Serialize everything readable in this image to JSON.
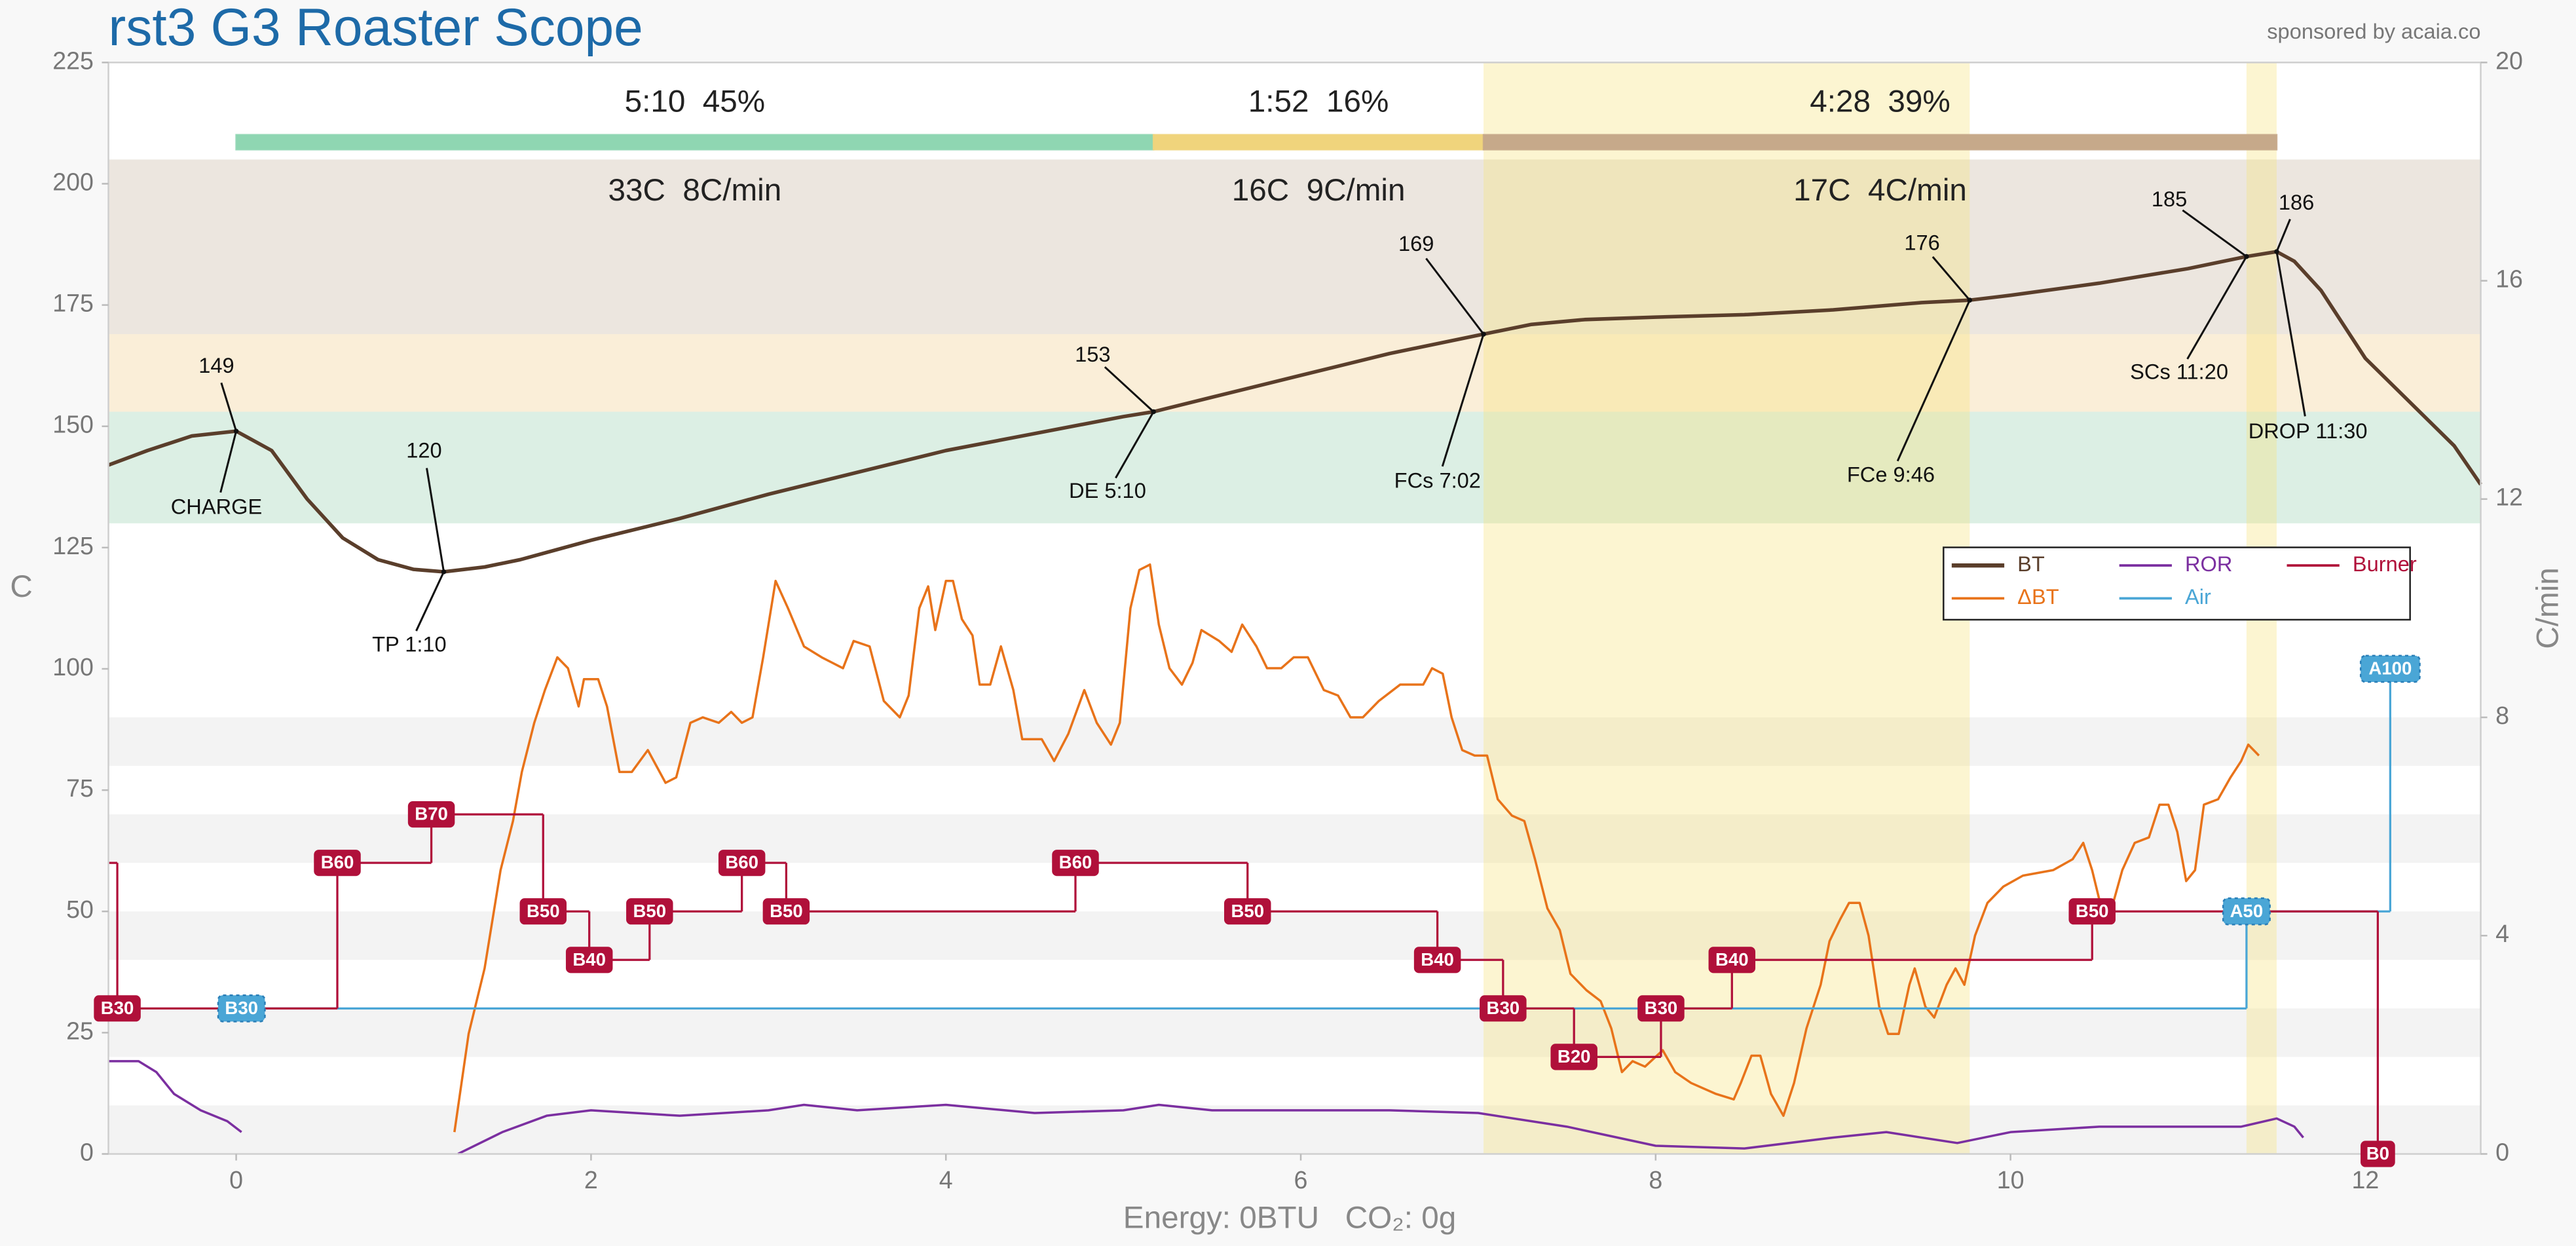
{
  "chart_data": {
    "type": "line",
    "title": "rst3 G3 Roaster Scope",
    "subtitle": "sponsored by acaia.co",
    "x_label": "Energy: 0BTU   CO₂: 0g",
    "y_label": "C",
    "y2_label": "C/min",
    "xlim": [
      -0.72,
      12.65
    ],
    "xticks": [
      0,
      2,
      4,
      6,
      8,
      10,
      12
    ],
    "ylim": [
      0,
      225
    ],
    "yticks": [
      0,
      25,
      50,
      75,
      100,
      125,
      150,
      175,
      200,
      225
    ],
    "y2lim": [
      0,
      20
    ],
    "y2ticks": [
      0,
      4,
      8,
      12,
      16,
      20
    ],
    "grid": false,
    "legend": "right",
    "bands": [
      {
        "from": 0,
        "to": 10,
        "color": "#f3f3f3"
      },
      {
        "from": 20,
        "to": 30,
        "color": "#f3f3f3"
      },
      {
        "from": 40,
        "to": 50,
        "color": "#f3f3f3"
      },
      {
        "from": 60,
        "to": 70,
        "color": "#f3f3f3"
      },
      {
        "from": 80,
        "to": 90,
        "color": "#f3f3f3"
      },
      {
        "from": 130,
        "to": 153,
        "color": "#dcefe4"
      },
      {
        "from": 153,
        "to": 169,
        "color": "#faeed8"
      },
      {
        "from": 169,
        "to": 205,
        "color": "#ece6df"
      }
    ],
    "highlights": [
      {
        "from": 7.03,
        "to": 9.77,
        "color": "#f7e27a"
      },
      {
        "from": 11.33,
        "to": 11.5,
        "color": "#f7e27a"
      }
    ],
    "phases": [
      {
        "label": "5:10  45%",
        "stats": "33C  8C/min",
        "start": 0,
        "end": 5.17,
        "color": "#8fd6b2"
      },
      {
        "label": "1:52  16%",
        "stats": "16C  9C/min",
        "start": 5.17,
        "end": 7.03,
        "color": "#f0d47c"
      },
      {
        "label": "4:28  39%",
        "stats": "17C  4C/min",
        "start": 7.03,
        "end": 11.5,
        "color": "#c6a98a"
      }
    ],
    "events": [
      {
        "label": "CHARGE",
        "x": 0,
        "y": 149
      },
      {
        "label": "TP 1:10",
        "x": 1.17,
        "y": 120
      },
      {
        "label": "DE 5:10",
        "x": 5.17,
        "y": 153
      },
      {
        "label": "FCs 7:02",
        "x": 7.03,
        "y": 169
      },
      {
        "label": "FCe 9:46",
        "x": 9.77,
        "y": 176
      },
      {
        "label": "SCs 11:20",
        "x": 11.33,
        "y": 185
      },
      {
        "label": "DROP 11:30",
        "x": 11.5,
        "y": 186
      }
    ],
    "series": [
      {
        "name": "BT",
        "color": "#5a3e2b",
        "x": [
          -0.72,
          -0.5,
          -0.25,
          0,
          0.2,
          0.4,
          0.6,
          0.8,
          1.0,
          1.17,
          1.4,
          1.6,
          1.8,
          2.0,
          2.5,
          3.0,
          3.5,
          4.0,
          4.5,
          5.0,
          5.17,
          5.5,
          6.0,
          6.5,
          7.03,
          7.3,
          7.6,
          8.0,
          8.5,
          9.0,
          9.5,
          9.77,
          10.0,
          10.5,
          11.0,
          11.33,
          11.5,
          11.6,
          11.75,
          12.0,
          12.25,
          12.5,
          12.65
        ],
        "values": [
          142,
          145,
          148,
          149,
          145,
          135,
          127,
          122.5,
          120.5,
          120,
          121,
          122.5,
          124.5,
          126.5,
          131,
          136,
          140.5,
          145,
          148.5,
          152,
          153,
          156,
          160.5,
          165,
          169,
          171,
          172,
          172.5,
          173,
          174,
          175.5,
          176,
          177,
          179.5,
          182.5,
          185,
          186,
          184,
          178,
          164,
          155,
          146,
          138
        ]
      },
      {
        "name": "ΔBT",
        "color": "#e8731a",
        "axis": "y2",
        "x": [
          1.23,
          1.31,
          1.4,
          1.49,
          1.56,
          1.61,
          1.68,
          1.74,
          1.81,
          1.87,
          1.93,
          1.96,
          2.04,
          2.09,
          2.16,
          2.23,
          2.32,
          2.42,
          2.48,
          2.56,
          2.63,
          2.72,
          2.79,
          2.85,
          2.91,
          2.97,
          3.04,
          3.11,
          3.2,
          3.3,
          3.42,
          3.48,
          3.57,
          3.65,
          3.74,
          3.79,
          3.85,
          3.9,
          3.94,
          4.0,
          4.04,
          4.09,
          4.15,
          4.19,
          4.25,
          4.31,
          4.38,
          4.43,
          4.54,
          4.61,
          4.69,
          4.78,
          4.85,
          4.93,
          4.98,
          5.04,
          5.09,
          5.15,
          5.2,
          5.26,
          5.33,
          5.39,
          5.44,
          5.54,
          5.61,
          5.67,
          5.75,
          5.81,
          5.89,
          5.96,
          6.04,
          6.13,
          6.21,
          6.28,
          6.35,
          6.44,
          6.56,
          6.69,
          6.74,
          6.8,
          6.85,
          6.91,
          6.98,
          7.05,
          7.11,
          7.19,
          7.26,
          7.32,
          7.39,
          7.46,
          7.52,
          7.61,
          7.69,
          7.75,
          7.81,
          7.87,
          7.94,
          8.04,
          8.11,
          8.2,
          8.34,
          8.44,
          8.48,
          8.54,
          8.59,
          8.65,
          8.72,
          8.78,
          8.85,
          8.93,
          8.98,
          9.04,
          9.09,
          9.15,
          9.2,
          9.26,
          9.31,
          9.37,
          9.43,
          9.46,
          9.52,
          9.57,
          9.64,
          9.69,
          9.74,
          9.8,
          9.87,
          9.96,
          10.07,
          10.24,
          10.35,
          10.41,
          10.46,
          10.52,
          10.57,
          10.63,
          10.7,
          10.78,
          10.84,
          10.89,
          10.94,
          10.99,
          11.04,
          11.09,
          11.17,
          11.24,
          11.3,
          11.34,
          11.4
        ],
        "values": [
          0.4,
          2.2,
          3.4,
          5.2,
          6.1,
          7.0,
          7.9,
          8.5,
          9.1,
          8.9,
          8.2,
          8.7,
          8.7,
          8.2,
          7.0,
          7.0,
          7.4,
          6.8,
          6.9,
          7.9,
          8.0,
          7.9,
          8.1,
          7.9,
          8.0,
          9.1,
          10.5,
          10.0,
          9.3,
          9.1,
          8.9,
          9.4,
          9.3,
          8.3,
          8.0,
          8.4,
          10.0,
          10.4,
          9.6,
          10.5,
          10.5,
          9.8,
          9.5,
          8.6,
          8.6,
          9.3,
          8.5,
          7.6,
          7.6,
          7.2,
          7.7,
          8.5,
          7.9,
          7.5,
          7.9,
          10.0,
          10.7,
          10.8,
          9.7,
          8.9,
          8.6,
          9.0,
          9.6,
          9.4,
          9.2,
          9.7,
          9.3,
          8.9,
          8.9,
          9.1,
          9.1,
          8.5,
          8.4,
          8.0,
          8.0,
          8.3,
          8.6,
          8.6,
          8.9,
          8.8,
          8.0,
          7.4,
          7.3,
          7.3,
          6.5,
          6.2,
          6.1,
          5.4,
          4.5,
          4.1,
          3.3,
          3.0,
          2.8,
          2.3,
          1.5,
          1.7,
          1.6,
          1.9,
          1.5,
          1.3,
          1.1,
          1.0,
          1.3,
          1.8,
          1.8,
          1.1,
          0.7,
          1.3,
          2.3,
          3.1,
          3.9,
          4.3,
          4.6,
          4.6,
          4.0,
          2.7,
          2.2,
          2.2,
          3.1,
          3.4,
          2.7,
          2.5,
          3.1,
          3.4,
          3.1,
          4.0,
          4.6,
          4.9,
          5.1,
          5.2,
          5.4,
          5.7,
          5.2,
          4.4,
          4.5,
          5.2,
          5.7,
          5.8,
          6.4,
          6.4,
          5.9,
          5.0,
          5.2,
          6.4,
          6.5,
          6.9,
          7.2,
          7.5,
          7.3
        ]
      },
      {
        "name": "ROR",
        "color": "#7b2fa0",
        "axis": "y2",
        "x": [
          -0.72,
          -0.55,
          -0.45,
          -0.35,
          -0.2,
          -0.05,
          0.03,
          0.6,
          1.25,
          1.5,
          1.75,
          2.0,
          2.5,
          3.0,
          3.2,
          3.5,
          4.0,
          4.5,
          5.0,
          5.2,
          5.5,
          6.0,
          6.5,
          7.0,
          7.5,
          8.0,
          8.5,
          9.0,
          9.3,
          9.7,
          10.0,
          10.5,
          11.0,
          11.3,
          11.5,
          11.6,
          11.65
        ],
        "values": [
          1.7,
          1.7,
          1.5,
          1.1,
          0.8,
          0.6,
          0.4,
          null,
          0,
          0.4,
          0.7,
          0.8,
          0.7,
          0.8,
          0.9,
          0.8,
          0.9,
          0.75,
          0.8,
          0.9,
          0.8,
          0.8,
          0.8,
          0.75,
          0.5,
          0.15,
          0.1,
          0.3,
          0.4,
          0.2,
          0.4,
          0.5,
          0.5,
          0.5,
          0.65,
          0.5,
          0.3
        ]
      },
      {
        "name": "Air",
        "color": "#4aa6d6",
        "step": true,
        "label_color": "#4aa6d6",
        "x": [
          0.03,
          11.33,
          12.14
        ],
        "values": [
          30,
          50,
          100
        ],
        "value_labels": [
          "B30",
          "A50",
          "A100"
        ]
      },
      {
        "name": "Burner",
        "color": "#b0103a",
        "step": true,
        "label_color": "#b0103a",
        "x": [
          -0.72,
          -0.67,
          0.57,
          1.1,
          1.73,
          1.99,
          2.33,
          2.85,
          3.1,
          4.73,
          5.7,
          6.77,
          7.14,
          7.54,
          8.03,
          8.43,
          10.46,
          12.07
        ],
        "values": [
          60,
          30,
          60,
          70,
          50,
          40,
          50,
          60,
          50,
          60,
          50,
          40,
          30,
          20,
          30,
          40,
          50,
          0
        ],
        "value_labels": [
          null,
          "B30",
          "B60",
          "B70",
          "B50",
          "B40",
          "B50",
          "B60",
          "B50",
          "B60",
          "B50",
          "B40",
          "B30",
          "B20",
          "B30",
          "B40",
          "B50",
          "B0"
        ]
      }
    ]
  }
}
